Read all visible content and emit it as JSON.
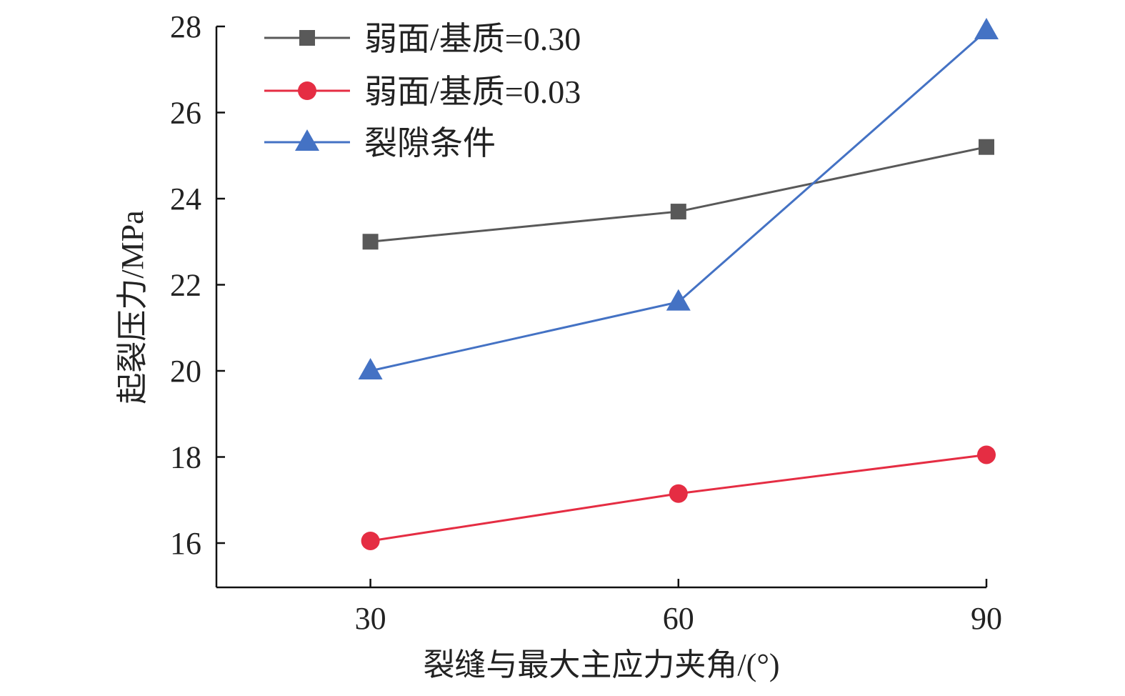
{
  "chart_data": {
    "type": "line",
    "title": "",
    "xlabel": "裂缝与最大主应力夹角/(°)",
    "ylabel": "起裂压力/MPa",
    "x": [
      30,
      60,
      90
    ],
    "xlim": [
      15,
      90
    ],
    "ylim": [
      15,
      28
    ],
    "xticks": [
      "30",
      "60",
      "90"
    ],
    "yticks": [
      "16",
      "18",
      "20",
      "22",
      "24",
      "26",
      "28"
    ],
    "grid": false,
    "legend_position": "top-left",
    "series": [
      {
        "name": "弱面/基质=0.30",
        "values": [
          23.0,
          23.7,
          25.2
        ],
        "color": "#595959",
        "marker": "square"
      },
      {
        "name": "弱面/基质=0.03",
        "values": [
          16.05,
          17.15,
          18.05
        ],
        "color": "#e52d43",
        "marker": "circle"
      },
      {
        "name": "裂隙条件",
        "values": [
          20.0,
          21.6,
          27.9
        ],
        "color": "#4472c4",
        "marker": "triangle"
      }
    ]
  }
}
